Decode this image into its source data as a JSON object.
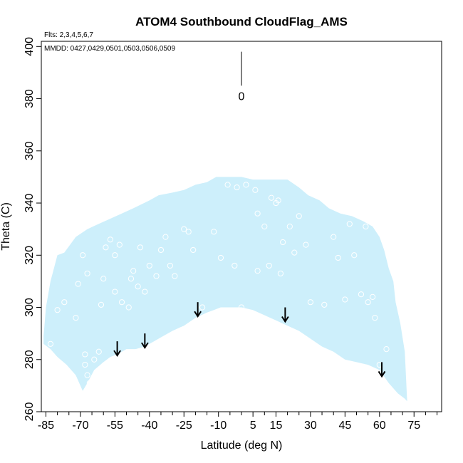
{
  "chart_data": {
    "type": "scatter",
    "title": "ATOM4 Southbound CloudFlag_AMS",
    "flights_label": "Flts: 2,3,4,5,6,7",
    "dates_label": "MMDD: 0427,0429,0501,0503,0506,0509",
    "xlabel": "Latitude (deg N)",
    "ylabel": "Theta (C)",
    "xlim": [
      -87,
      87
    ],
    "ylim": [
      260,
      402
    ],
    "xticks": [
      -85,
      -70,
      -55,
      -40,
      -25,
      -10,
      5,
      15,
      30,
      45,
      60,
      75
    ],
    "xtick_labels": [
      "-85",
      "-70",
      "-55",
      "-40",
      "-25",
      "-10",
      "5",
      "15",
      "30",
      "45",
      "60",
      "75"
    ],
    "xticks_minor": [
      -80,
      -75,
      -65,
      -60,
      -50,
      -45,
      -35,
      -30,
      -20,
      -15,
      -5,
      0,
      10,
      20,
      25,
      35,
      40,
      50,
      55,
      65,
      70,
      80,
      85
    ],
    "yticks": [
      260,
      280,
      300,
      320,
      340,
      360,
      380,
      400
    ],
    "ytick_labels": [
      "260",
      "280",
      "300",
      "320",
      "340",
      "360",
      "380",
      "400"
    ],
    "legend": {
      "value_label": "0",
      "x": 0,
      "y_top": 398,
      "y_bottom": 385
    },
    "fill_color": "#cdeffb",
    "coverage_lower": [
      [
        -86,
        286
      ],
      [
        -83,
        284
      ],
      [
        -80,
        281
      ],
      [
        -76,
        278
      ],
      [
        -72,
        274
      ],
      [
        -69,
        268
      ],
      [
        -67,
        271
      ],
      [
        -64,
        276
      ],
      [
        -60,
        279
      ],
      [
        -57,
        281
      ],
      [
        -54,
        282
      ],
      [
        -50,
        284
      ],
      [
        -46,
        284
      ],
      [
        -42,
        285
      ],
      [
        -38,
        287
      ],
      [
        -34,
        289
      ],
      [
        -30,
        291
      ],
      [
        -25,
        293
      ],
      [
        -20,
        296
      ],
      [
        -15,
        298
      ],
      [
        -12,
        299
      ],
      [
        -9,
        300
      ],
      [
        -5,
        300
      ],
      [
        0,
        300
      ],
      [
        5,
        299
      ],
      [
        10,
        297
      ],
      [
        15,
        295
      ],
      [
        20,
        293
      ],
      [
        25,
        291
      ],
      [
        30,
        288
      ],
      [
        35,
        285
      ],
      [
        40,
        283
      ],
      [
        45,
        280
      ],
      [
        50,
        279
      ],
      [
        55,
        278
      ],
      [
        60,
        276
      ],
      [
        64,
        271
      ],
      [
        68,
        267
      ],
      [
        71,
        265
      ],
      [
        72,
        264
      ]
    ],
    "coverage_upper": [
      [
        72,
        264
      ],
      [
        71,
        283
      ],
      [
        69,
        294
      ],
      [
        67,
        302
      ],
      [
        66,
        310
      ],
      [
        64,
        315
      ],
      [
        62,
        322
      ],
      [
        60,
        327
      ],
      [
        57,
        331
      ],
      [
        53,
        333
      ],
      [
        48,
        335
      ],
      [
        43,
        336
      ],
      [
        38,
        338
      ],
      [
        34,
        341
      ],
      [
        29,
        343
      ],
      [
        25,
        346
      ],
      [
        20,
        349
      ],
      [
        15,
        349
      ],
      [
        10,
        349
      ],
      [
        5,
        349
      ],
      [
        0,
        350
      ],
      [
        -5,
        350
      ],
      [
        -11,
        350
      ],
      [
        -15,
        348
      ],
      [
        -20,
        347
      ],
      [
        -25,
        345
      ],
      [
        -30,
        344
      ],
      [
        -36,
        343
      ],
      [
        -40,
        341
      ],
      [
        -47,
        338
      ],
      [
        -52,
        336
      ],
      [
        -57,
        334
      ],
      [
        -62,
        332
      ],
      [
        -67,
        330
      ],
      [
        -72,
        327
      ],
      [
        -77,
        321
      ],
      [
        -80,
        320
      ],
      [
        -83,
        310
      ],
      [
        -85,
        300
      ],
      [
        -86,
        289
      ],
      [
        -86,
        286
      ]
    ],
    "points": [
      [
        -83,
        286
      ],
      [
        -80,
        299
      ],
      [
        -77,
        302
      ],
      [
        -72,
        296
      ],
      [
        -71,
        309
      ],
      [
        -69,
        320
      ],
      [
        -67,
        313
      ],
      [
        -68,
        282
      ],
      [
        -68,
        278
      ],
      [
        -67,
        274
      ],
      [
        -66,
        271
      ],
      [
        -64,
        280
      ],
      [
        -62,
        283
      ],
      [
        -61,
        301
      ],
      [
        -60,
        311
      ],
      [
        -59,
        323
      ],
      [
        -57,
        326
      ],
      [
        -55,
        320
      ],
      [
        -55,
        306
      ],
      [
        -53,
        324
      ],
      [
        -52,
        302
      ],
      [
        -49,
        300
      ],
      [
        -48,
        311
      ],
      [
        -47,
        314
      ],
      [
        -45,
        308
      ],
      [
        -44,
        323
      ],
      [
        -42,
        306
      ],
      [
        -40,
        316
      ],
      [
        -37,
        312
      ],
      [
        -35,
        322
      ],
      [
        -33,
        327
      ],
      [
        -31,
        316
      ],
      [
        -29,
        312
      ],
      [
        -25,
        330
      ],
      [
        -23,
        329
      ],
      [
        -21,
        322
      ],
      [
        -17,
        300
      ],
      [
        -12,
        329
      ],
      [
        -9,
        319
      ],
      [
        -6,
        347
      ],
      [
        -2,
        346
      ],
      [
        2,
        347
      ],
      [
        6,
        345
      ],
      [
        7,
        336
      ],
      [
        -3,
        316
      ],
      [
        0,
        300
      ],
      [
        7,
        314
      ],
      [
        10,
        331
      ],
      [
        12,
        316
      ],
      [
        13,
        342
      ],
      [
        15,
        340
      ],
      [
        16,
        341
      ],
      [
        17,
        313
      ],
      [
        18,
        325
      ],
      [
        21,
        331
      ],
      [
        23,
        321
      ],
      [
        25,
        335
      ],
      [
        28,
        324
      ],
      [
        30,
        302
      ],
      [
        33,
        343
      ],
      [
        36,
        301
      ],
      [
        40,
        327
      ],
      [
        42,
        319
      ],
      [
        45,
        303
      ],
      [
        47,
        332
      ],
      [
        49,
        320
      ],
      [
        52,
        305
      ],
      [
        54,
        331
      ],
      [
        55,
        302
      ],
      [
        57,
        304
      ],
      [
        58,
        296
      ],
      [
        60,
        278
      ],
      [
        63,
        284
      ]
    ],
    "arrows": [
      [
        -54,
        287
      ],
      [
        -42,
        290
      ],
      [
        -19,
        302
      ],
      [
        19,
        300
      ],
      [
        61,
        279
      ]
    ]
  }
}
